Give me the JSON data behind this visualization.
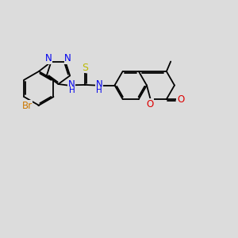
{
  "background_color": "#dcdcdc",
  "bond_color": "#000000",
  "bond_lw": 1.3,
  "dbo": 0.055,
  "figsize": [
    3.0,
    3.0
  ],
  "dpi": 100,
  "colors": {
    "Br": "#cc7700",
    "N": "#0000ee",
    "S": "#bbbb00",
    "O": "#dd0000",
    "C": "#000000"
  }
}
